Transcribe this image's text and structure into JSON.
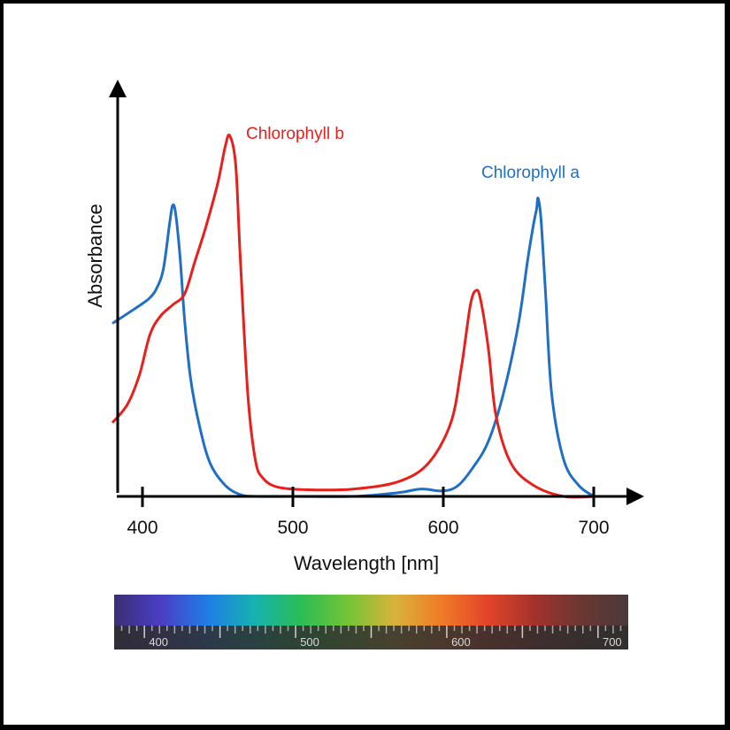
{
  "chart_data": {
    "type": "line",
    "xlabel": "Wavelength [nm]",
    "ylabel": "Absorbance",
    "xlim": [
      380,
      710
    ],
    "ylim": [
      0,
      1.0
    ],
    "x_ticks": [
      "400",
      "500",
      "600",
      "700"
    ],
    "grid": false,
    "legend": "inline labels near peaks",
    "series": [
      {
        "name": "Chlorophyll a",
        "color": "#1f6fc5",
        "x": [
          380,
          395,
          405,
          410,
          414,
          418,
          420,
          422,
          425,
          428,
          432,
          438,
          445,
          455,
          465,
          475,
          500,
          540,
          570,
          585,
          600,
          610,
          620,
          630,
          640,
          650,
          656,
          660,
          662,
          663,
          665,
          668,
          672,
          680,
          690,
          700
        ],
        "y": [
          0.47,
          0.51,
          0.54,
          0.57,
          0.62,
          0.74,
          0.79,
          0.77,
          0.65,
          0.48,
          0.32,
          0.19,
          0.09,
          0.03,
          0.005,
          0.0,
          0.0,
          0.0,
          0.01,
          0.02,
          0.015,
          0.03,
          0.08,
          0.15,
          0.28,
          0.47,
          0.64,
          0.74,
          0.78,
          0.81,
          0.75,
          0.55,
          0.28,
          0.1,
          0.03,
          0.0
        ]
      },
      {
        "name": "Chlorophyll b",
        "color": "#e8201c",
        "x": [
          380,
          390,
          398,
          405,
          412,
          420,
          428,
          435,
          442,
          450,
          455,
          458,
          462,
          465,
          470,
          475,
          480,
          490,
          510,
          540,
          570,
          590,
          605,
          612,
          618,
          622,
          625,
          630,
          635,
          645,
          660,
          680,
          700
        ],
        "y": [
          0.2,
          0.25,
          0.33,
          0.44,
          0.49,
          0.52,
          0.55,
          0.64,
          0.73,
          0.85,
          0.95,
          0.98,
          0.9,
          0.65,
          0.28,
          0.1,
          0.05,
          0.025,
          0.018,
          0.02,
          0.04,
          0.09,
          0.2,
          0.35,
          0.52,
          0.56,
          0.53,
          0.4,
          0.22,
          0.09,
          0.03,
          0.0,
          0.0
        ]
      }
    ]
  },
  "spectrum_bar": {
    "labels": [
      "400",
      "500",
      "600",
      "700"
    ],
    "colors": [
      "#3a2f73",
      "#4b3ec4",
      "#1f7de6",
      "#16b2b0",
      "#2bbd55",
      "#74c436",
      "#d8b33a",
      "#f07b27",
      "#e2442a",
      "#a3322c",
      "#6a3733",
      "#4a3a3a"
    ]
  }
}
